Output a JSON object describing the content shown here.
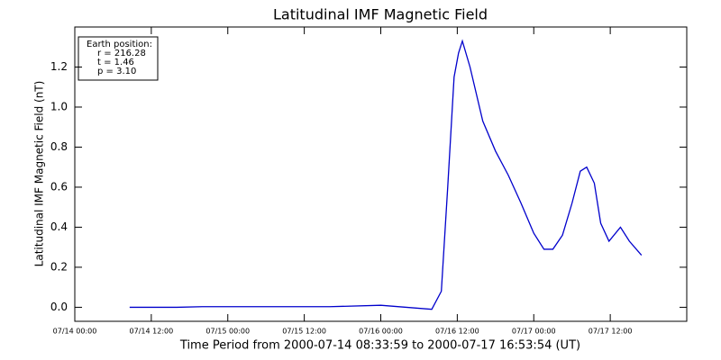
{
  "chart_data": {
    "type": "line",
    "title": "Latitudinal IMF Magnetic Field",
    "x_label": "Time Period from 2000-07-14 08:33:59 to 2000-07-17 16:53:54 (UT)",
    "y_label": "Latitudinal IMF Magnetic Field (nT)",
    "annotation": [
      "Earth position:",
      "r = 216.28",
      "t = 1.46",
      "p = 3.10"
    ],
    "x": [
      8.6,
      12,
      16,
      20,
      24,
      32,
      40,
      48,
      52,
      56,
      57.5,
      58.5,
      59.5,
      60.2,
      60.8,
      62,
      64,
      66,
      68,
      70,
      72,
      73.6,
      75,
      76.5,
      78,
      79.3,
      80.3,
      81.5,
      82.5,
      83.8,
      85.6,
      87,
      88.9
    ],
    "series": [
      {
        "name": "Latitudinal IMF",
        "color": "#0000cc",
        "values": [
          0.0,
          0.0,
          0.0,
          0.003,
          0.003,
          0.003,
          0.003,
          0.01,
          0.0,
          -0.01,
          0.08,
          0.6,
          1.15,
          1.27,
          1.33,
          1.2,
          0.93,
          0.78,
          0.66,
          0.52,
          0.37,
          0.29,
          0.29,
          0.36,
          0.52,
          0.68,
          0.7,
          0.62,
          0.42,
          0.33,
          0.4,
          0.33,
          0.26
        ]
      }
    ],
    "xlim": [
      0,
      96
    ],
    "xticks": [
      {
        "value": 0,
        "label": "07/14 00:00"
      },
      {
        "value": 12,
        "label": "07/14 12:00"
      },
      {
        "value": 24,
        "label": "07/15 00:00"
      },
      {
        "value": 36,
        "label": "07/15 12:00"
      },
      {
        "value": 48,
        "label": "07/16 00:00"
      },
      {
        "value": 60,
        "label": "07/16 12:00"
      },
      {
        "value": 72,
        "label": "07/17 00:00"
      },
      {
        "value": 84,
        "label": "07/17 12:00"
      }
    ],
    "ylim": [
      -0.07,
      1.4
    ],
    "yticks": [
      {
        "value": 0,
        "label": "0.0"
      },
      {
        "value": 0.2,
        "label": "0.2"
      },
      {
        "value": 0.4,
        "label": "0.4"
      },
      {
        "value": 0.6,
        "label": "0.6"
      },
      {
        "value": 0.8,
        "label": "0.8"
      },
      {
        "value": 1.0,
        "label": "1.0"
      },
      {
        "value": 1.2,
        "label": "1.2"
      }
    ]
  }
}
